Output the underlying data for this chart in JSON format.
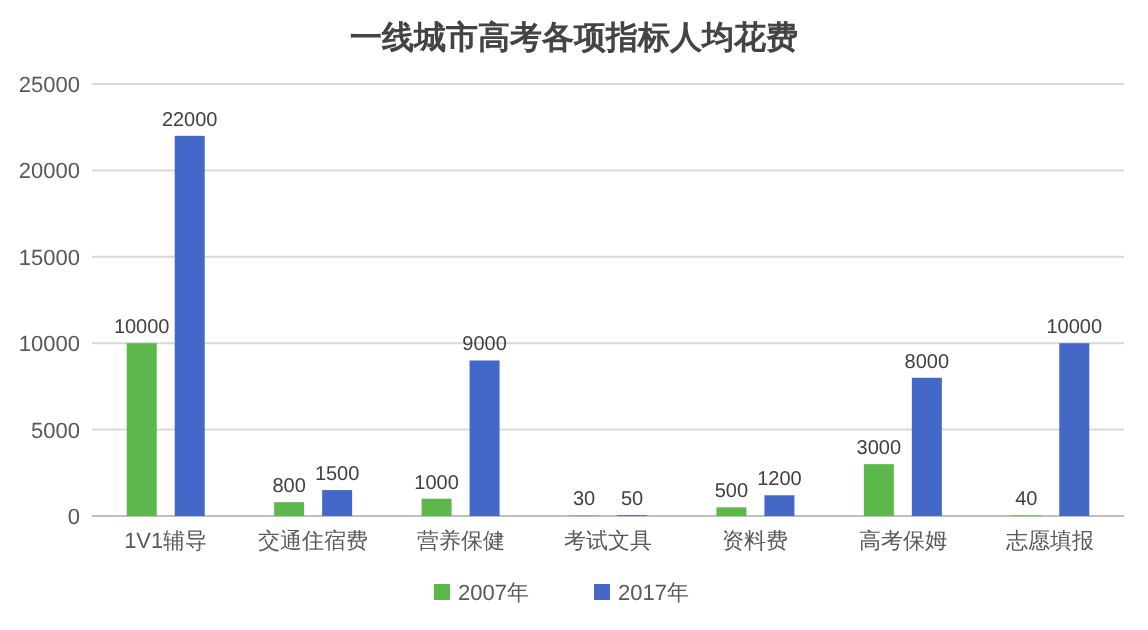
{
  "chart_data": {
    "type": "bar",
    "title": "一线城市高考各项指标人均花费",
    "categories": [
      "1V1辅导",
      "交通住宿费",
      "营养保健",
      "考试文具",
      "资料费",
      "高考保姆",
      "志愿填报"
    ],
    "series": [
      {
        "name": "2007年",
        "color": "#5cb84a",
        "values": [
          10000,
          800,
          1000,
          30,
          500,
          3000,
          40
        ]
      },
      {
        "name": "2017年",
        "color": "#4468c8",
        "values": [
          22000,
          1500,
          9000,
          50,
          1200,
          8000,
          10000
        ]
      }
    ],
    "ylim": [
      0,
      25000
    ],
    "yticks": [
      0,
      5000,
      10000,
      15000,
      20000,
      25000
    ],
    "grid": "y",
    "legend": "bottom",
    "data_labels": true
  }
}
